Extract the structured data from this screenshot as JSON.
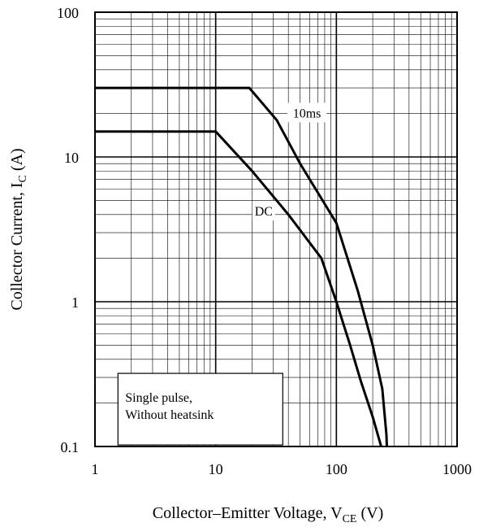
{
  "chart_data": {
    "type": "line",
    "xscale": "log",
    "yscale": "log",
    "xlim": [
      1,
      1000
    ],
    "ylim": [
      0.1,
      100
    ],
    "grid": true,
    "xlabel": {
      "main": "Collector–Emitter Voltage, V",
      "sub": "CE",
      "unit": "(V)"
    },
    "ylabel": {
      "main": "Collector Current, I",
      "sub": "C",
      "unit": "(A)"
    },
    "x_ticks": [
      {
        "value": 1,
        "label": "1"
      },
      {
        "value": 10,
        "label": "10"
      },
      {
        "value": 100,
        "label": "100"
      },
      {
        "value": 1000,
        "label": "1000"
      }
    ],
    "y_ticks": [
      {
        "value": 0.1,
        "label": "0.1"
      },
      {
        "value": 1,
        "label": "1"
      },
      {
        "value": 10,
        "label": "10"
      },
      {
        "value": 100,
        "label": "100"
      }
    ],
    "series": [
      {
        "name": "10ms",
        "points": [
          [
            1,
            30
          ],
          [
            19,
            30
          ],
          [
            32,
            18
          ],
          [
            50,
            9
          ],
          [
            100,
            3.5
          ],
          [
            150,
            1.2
          ],
          [
            200,
            0.5
          ],
          [
            240,
            0.25
          ],
          [
            260,
            0.12
          ],
          [
            262,
            0.1
          ]
        ]
      },
      {
        "name": "DC",
        "points": [
          [
            1,
            15
          ],
          [
            10,
            15
          ],
          [
            20,
            8
          ],
          [
            40,
            4
          ],
          [
            75,
            2
          ],
          [
            100,
            1
          ],
          [
            130,
            0.5
          ],
          [
            160,
            0.28
          ],
          [
            200,
            0.16
          ],
          [
            235,
            0.1
          ]
        ]
      }
    ],
    "annotations": [
      {
        "text": "10ms",
        "x": 57,
        "y": 20
      },
      {
        "text": "DC",
        "x": 25,
        "y": 4.2
      },
      {
        "text": [
          "Single pulse,",
          "Without heatsink"
        ],
        "x": 1.55,
        "y": 0.32
      }
    ]
  }
}
